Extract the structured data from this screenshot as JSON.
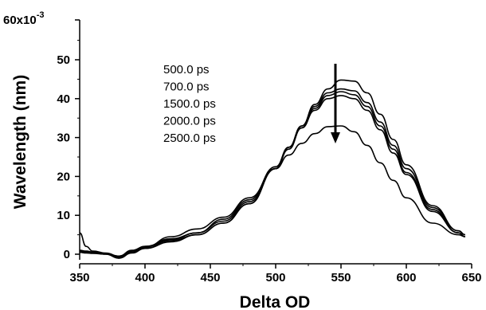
{
  "chart_data": {
    "type": "line",
    "xlabel": "Delta OD",
    "ylabel": "Wavelength (nm)",
    "y_multiplier_label": "60x10",
    "y_multiplier_exponent": "-3",
    "xlim": [
      350,
      650
    ],
    "ylim": [
      0,
      60
    ],
    "x_ticks": [
      350,
      400,
      450,
      500,
      550,
      600,
      650
    ],
    "y_ticks": [
      0,
      10,
      20,
      30,
      40,
      50
    ],
    "grid": false,
    "legend_position": "top-center",
    "annotation": "arrow pointing down at peak near x=545",
    "series": [
      {
        "name": "500.0 ps",
        "x": [
          350,
          355,
          360,
          370,
          380,
          390,
          400,
          420,
          440,
          460,
          480,
          500,
          510,
          520,
          530,
          540,
          550,
          560,
          570,
          580,
          590,
          600,
          620,
          640,
          645
        ],
        "y": [
          5.5,
          2.0,
          0.8,
          0.3,
          -0.5,
          1.0,
          2.0,
          3.5,
          5.0,
          8.0,
          13.0,
          22.0,
          27.5,
          33.0,
          38.5,
          42.5,
          44.8,
          44.5,
          41.5,
          36.0,
          29.5,
          23.0,
          12.5,
          6.0,
          5.0
        ]
      },
      {
        "name": "700.0 ps",
        "x": [
          350,
          355,
          360,
          370,
          380,
          390,
          400,
          420,
          440,
          460,
          480,
          500,
          510,
          520,
          530,
          540,
          550,
          560,
          570,
          580,
          590,
          600,
          620,
          640,
          645
        ],
        "y": [
          1.0,
          0.8,
          0.6,
          0.2,
          -0.8,
          0.5,
          1.5,
          3.2,
          5.0,
          8.0,
          13.0,
          22.0,
          27.5,
          33.0,
          38.0,
          41.5,
          42.5,
          42.0,
          39.0,
          34.0,
          28.0,
          22.0,
          12.0,
          6.0,
          5.0
        ]
      },
      {
        "name": "1500.0 ps",
        "x": [
          350,
          355,
          360,
          370,
          380,
          390,
          400,
          420,
          440,
          460,
          480,
          500,
          510,
          520,
          530,
          540,
          550,
          560,
          570,
          580,
          590,
          600,
          620,
          640,
          645
        ],
        "y": [
          0.8,
          0.6,
          0.5,
          0.0,
          -1.0,
          0.8,
          2.0,
          4.0,
          5.5,
          8.5,
          13.5,
          22.0,
          27.0,
          32.5,
          37.5,
          40.8,
          41.8,
          41.0,
          38.0,
          33.0,
          27.0,
          21.0,
          11.5,
          5.5,
          4.5
        ]
      },
      {
        "name": "2000.0 ps",
        "x": [
          350,
          355,
          360,
          370,
          380,
          390,
          400,
          420,
          440,
          460,
          480,
          500,
          510,
          520,
          530,
          540,
          550,
          560,
          570,
          580,
          590,
          600,
          620,
          640,
          645
        ],
        "y": [
          0.5,
          0.4,
          0.3,
          0.2,
          -1.0,
          0.3,
          1.5,
          3.8,
          5.5,
          9.0,
          14.0,
          22.5,
          27.5,
          32.5,
          37.0,
          40.0,
          40.8,
          40.0,
          37.0,
          32.0,
          26.0,
          20.5,
          11.0,
          5.5,
          4.5
        ]
      },
      {
        "name": "2500.0 ps",
        "x": [
          350,
          355,
          360,
          370,
          380,
          390,
          400,
          420,
          440,
          460,
          480,
          500,
          510,
          520,
          530,
          540,
          550,
          560,
          570,
          580,
          590,
          600,
          620,
          640,
          645
        ],
        "y": [
          0.5,
          0.3,
          0.2,
          0.0,
          -0.5,
          0.5,
          1.8,
          4.5,
          6.5,
          9.5,
          14.5,
          22.0,
          25.5,
          28.5,
          31.0,
          32.8,
          33.0,
          31.5,
          28.0,
          23.5,
          19.0,
          14.5,
          8.0,
          5.0,
          4.5
        ]
      }
    ]
  }
}
